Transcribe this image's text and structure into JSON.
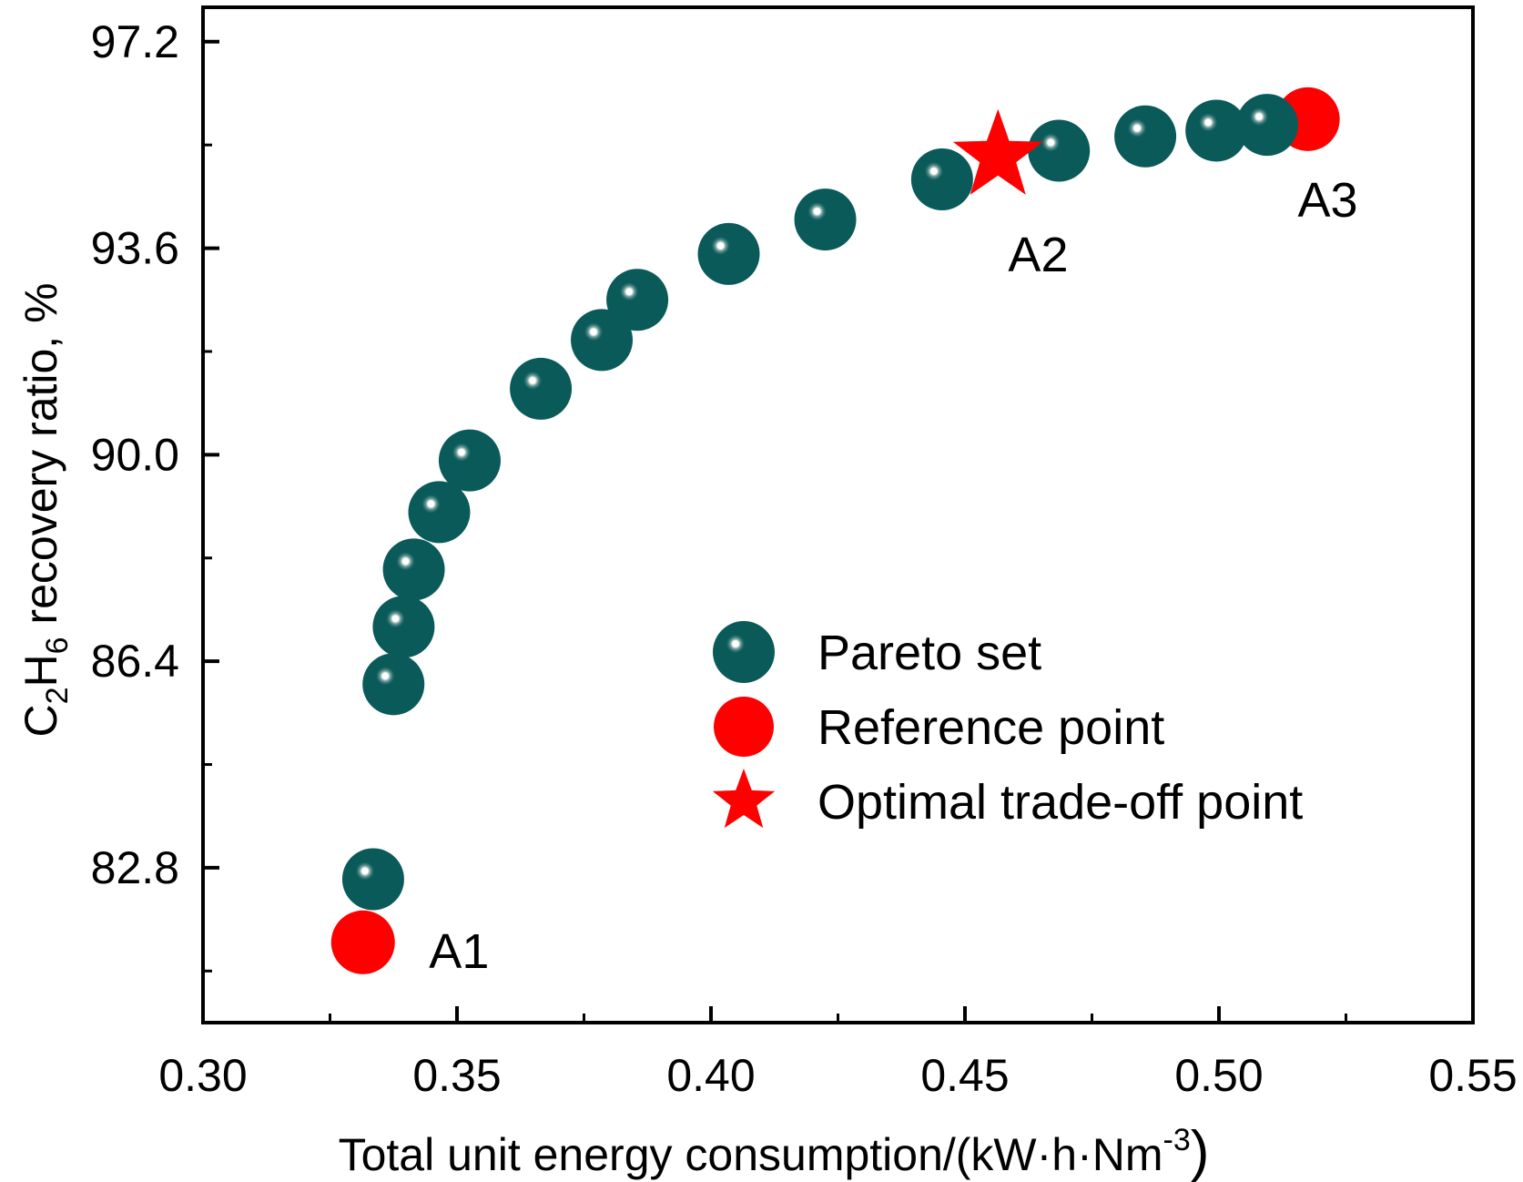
{
  "chart_data": {
    "type": "scatter",
    "xlabel": "Total unit energy consumption/(kW·h·Nm",
    "xlabel_sup": "-3",
    "xlabel_close": ")",
    "ylabel": {
      "pre": "C",
      "sub1": "2",
      "mid": "H",
      "sub2": "6",
      "post": " recovery ratio, %"
    },
    "xlim": [
      0.3,
      0.55
    ],
    "ylim": [
      80.1,
      97.8
    ],
    "x_ticks": [
      0.3,
      0.35,
      0.4,
      0.45,
      0.5,
      0.55
    ],
    "x_tick_labels": [
      "0.30",
      "0.35",
      "0.40",
      "0.45",
      "0.50",
      "0.55"
    ],
    "y_ticks": [
      82.8,
      86.4,
      90.0,
      93.6,
      97.2
    ],
    "y_tick_labels": [
      "82.8",
      "86.4",
      "90.0",
      "93.6",
      "97.2"
    ],
    "series": [
      {
        "name": "Pareto set",
        "color": "#0b5a5a",
        "points": [
          [
            0.3335,
            82.6
          ],
          [
            0.3375,
            86.0
          ],
          [
            0.3395,
            87.0
          ],
          [
            0.3415,
            88.0
          ],
          [
            0.3465,
            89.0
          ],
          [
            0.3525,
            89.9
          ],
          [
            0.3665,
            91.15
          ],
          [
            0.3785,
            92.0
          ],
          [
            0.3855,
            92.7
          ],
          [
            0.4035,
            93.5
          ],
          [
            0.4225,
            94.1
          ],
          [
            0.4455,
            94.8
          ],
          [
            0.4685,
            95.3
          ],
          [
            0.4855,
            95.55
          ],
          [
            0.4995,
            95.65
          ],
          [
            0.5095,
            95.75
          ]
        ]
      },
      {
        "name": "Reference point",
        "color": "#ff0000",
        "points": [
          [
            0.3315,
            81.5
          ],
          [
            0.5175,
            95.85
          ]
        ]
      },
      {
        "name": "Optimal trade-off point",
        "color": "#ff0000",
        "points": [
          [
            0.4565,
            95.2
          ]
        ]
      }
    ],
    "annotations": [
      {
        "text": "A1",
        "x": 0.3445,
        "y": 81.05
      },
      {
        "text": "A2",
        "x": 0.4585,
        "y": 93.2
      },
      {
        "text": "A3",
        "x": 0.5155,
        "y": 94.15
      }
    ],
    "legend": {
      "position": "bottom-right",
      "entries": [
        "Pareto set",
        "Reference point",
        "Optimal trade-off point"
      ]
    }
  }
}
